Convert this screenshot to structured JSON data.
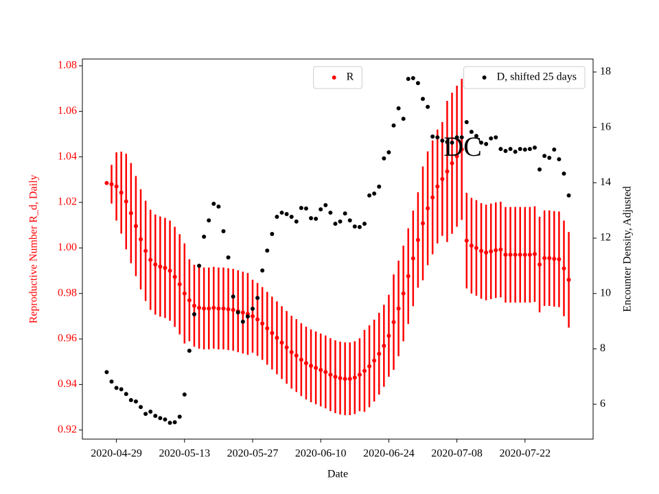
{
  "chart_data": {
    "type": "scatter",
    "annotation": "DC",
    "xlabel": "Date",
    "ylabel": "Reproductive Number R_d, Daily",
    "y2label": "Encounter Density, Adjusted",
    "x": [
      "2020-04-27",
      "2020-04-28",
      "2020-04-29",
      "2020-04-30",
      "2020-05-01",
      "2020-05-02",
      "2020-05-03",
      "2020-05-04",
      "2020-05-05",
      "2020-05-06",
      "2020-05-07",
      "2020-05-08",
      "2020-05-09",
      "2020-05-10",
      "2020-05-11",
      "2020-05-12",
      "2020-05-13",
      "2020-05-14",
      "2020-05-15",
      "2020-05-16",
      "2020-05-17",
      "2020-05-18",
      "2020-05-19",
      "2020-05-20",
      "2020-05-21",
      "2020-05-22",
      "2020-05-23",
      "2020-05-24",
      "2020-05-25",
      "2020-05-26",
      "2020-05-27",
      "2020-05-28",
      "2020-05-29",
      "2020-05-30",
      "2020-05-31",
      "2020-06-01",
      "2020-06-02",
      "2020-06-03",
      "2020-06-04",
      "2020-06-05",
      "2020-06-06",
      "2020-06-07",
      "2020-06-08",
      "2020-06-09",
      "2020-06-10",
      "2020-06-11",
      "2020-06-12",
      "2020-06-13",
      "2020-06-14",
      "2020-06-15",
      "2020-06-16",
      "2020-06-17",
      "2020-06-18",
      "2020-06-19",
      "2020-06-20",
      "2020-06-21",
      "2020-06-22",
      "2020-06-23",
      "2020-06-24",
      "2020-06-25",
      "2020-06-26",
      "2020-06-27",
      "2020-06-28",
      "2020-06-29",
      "2020-06-30",
      "2020-07-01",
      "2020-07-02",
      "2020-07-03",
      "2020-07-04",
      "2020-07-05",
      "2020-07-06",
      "2020-07-07",
      "2020-07-08",
      "2020-07-09",
      "2020-07-10",
      "2020-07-11",
      "2020-07-12",
      "2020-07-13",
      "2020-07-14",
      "2020-07-15",
      "2020-07-16",
      "2020-07-17",
      "2020-07-18",
      "2020-07-19",
      "2020-07-20",
      "2020-07-21",
      "2020-07-22",
      "2020-07-23",
      "2020-07-24",
      "2020-07-25",
      "2020-07-26",
      "2020-07-27",
      "2020-07-28",
      "2020-07-29",
      "2020-07-30",
      "2020-07-31"
    ],
    "xlim": [
      "2020-04-22",
      "2020-08-05"
    ],
    "xticks": [
      "2020-04-29",
      "2020-05-13",
      "2020-05-27",
      "2020-06-10",
      "2020-06-24",
      "2020-07-08",
      "2020-07-22"
    ],
    "ylim": [
      0.916,
      1.083
    ],
    "yticks": [
      0.92,
      0.94,
      0.96,
      0.98,
      {
        "value": 1.0,
        "label": "1.00"
      },
      1.02,
      1.04,
      1.06,
      1.08
    ],
    "y2lim": [
      4.74,
      18.47
    ],
    "y2ticks": [
      6,
      8,
      10,
      12,
      14,
      16,
      18
    ],
    "series": [
      {
        "name": "R",
        "color": "#ff0000",
        "legend_loc": "upper center",
        "values": [
          1.0285,
          1.028,
          1.027,
          1.0243,
          1.0204,
          1.0153,
          1.0096,
          1.0038,
          0.9987,
          0.9948,
          0.9927,
          0.9918,
          0.9912,
          0.99,
          0.9873,
          0.984,
          0.98,
          0.977,
          0.9746,
          0.9737,
          0.9734,
          0.9734,
          0.9737,
          0.9734,
          0.9734,
          0.9731,
          0.9728,
          0.9722,
          0.9716,
          0.971,
          0.97,
          0.9686,
          0.9668,
          0.9647,
          0.9626,
          0.9605,
          0.9584,
          0.9563,
          0.9542,
          0.9527,
          0.9509,
          0.9494,
          0.9482,
          0.9473,
          0.9464,
          0.9455,
          0.9443,
          0.9434,
          0.9428,
          0.9425,
          0.9425,
          0.943,
          0.9443,
          0.946,
          0.948,
          0.9505,
          0.9535,
          0.957,
          0.9614,
          0.9674,
          0.9734,
          0.98,
          0.9876,
          0.9954,
          1.0035,
          1.0108,
          1.0174,
          1.0222,
          1.027,
          1.0303,
          1.0336,
          1.0372,
          1.0403,
          1.0433,
          1.0032,
          1.001,
          1.0,
          0.9987,
          0.998,
          0.9985,
          0.999,
          0.9993,
          0.997,
          0.997,
          0.997,
          0.997,
          0.997,
          0.997,
          0.9973,
          0.9927,
          0.9955,
          0.9955,
          0.9952,
          0.995,
          0.991,
          0.986
        ],
        "errors": [
          0,
          0.0085,
          0.015,
          0.018,
          0.021,
          0.022,
          0.022,
          0.022,
          0.022,
          0.022,
          0.022,
          0.022,
          0.022,
          0.022,
          0.022,
          0.022,
          0.022,
          0.018,
          0.018,
          0.018,
          0.018,
          0.018,
          0.018,
          0.018,
          0.018,
          0.018,
          0.018,
          0.018,
          0.018,
          0.018,
          0.016,
          0.016,
          0.016,
          0.016,
          0.016,
          0.016,
          0.016,
          0.016,
          0.016,
          0.016,
          0.016,
          0.016,
          0.016,
          0.016,
          0.016,
          0.016,
          0.016,
          0.016,
          0.016,
          0.016,
          0.016,
          0.016,
          0.016,
          0.018,
          0.018,
          0.018,
          0.018,
          0.018,
          0.018,
          0.021,
          0.021,
          0.021,
          0.021,
          0.021,
          0.021,
          0.025,
          0.025,
          0.025,
          0.025,
          0.025,
          0.031,
          0.031,
          0.031,
          0.031,
          0.021,
          0.021,
          0.021,
          0.021,
          0.021,
          0.021,
          0.021,
          0.021,
          0.021,
          0.021,
          0.021,
          0.021,
          0.021,
          0.021,
          0.021,
          0.021,
          0.021,
          0.021,
          0.021,
          0.021,
          0.021,
          0.021
        ]
      },
      {
        "name": "D, shifted 25 days",
        "color": "#000000",
        "axis": "y2",
        "legend_loc": "upper right",
        "values": [
          7.16,
          6.82,
          6.59,
          6.54,
          6.37,
          6.15,
          6.1,
          5.9,
          5.65,
          5.73,
          5.58,
          5.5,
          5.45,
          5.33,
          5.35,
          5.55,
          6.35,
          7.93,
          9.25,
          11.0,
          12.05,
          12.64,
          13.24,
          13.14,
          12.25,
          11.3,
          9.89,
          9.32,
          8.98,
          9.17,
          9.45,
          9.84,
          10.83,
          11.55,
          12.15,
          12.77,
          12.92,
          12.87,
          12.77,
          12.6,
          13.09,
          13.07,
          12.72,
          12.7,
          13.04,
          13.19,
          12.92,
          12.52,
          12.6,
          12.89,
          12.64,
          12.42,
          12.4,
          12.52,
          13.54,
          13.61,
          13.86,
          14.88,
          15.1,
          16.07,
          16.69,
          16.31,
          17.75,
          17.78,
          17.6,
          17.03,
          16.74,
          15.67,
          15.64,
          15.52,
          15.47,
          15.45,
          15.64,
          15.64,
          16.19,
          15.84,
          15.69,
          15.45,
          15.4,
          15.6,
          15.64,
          15.22,
          15.15,
          15.22,
          15.12,
          15.22,
          15.2,
          15.22,
          15.27,
          14.48,
          14.97,
          14.9,
          15.2,
          14.85,
          14.33,
          13.54
        ]
      }
    ]
  }
}
